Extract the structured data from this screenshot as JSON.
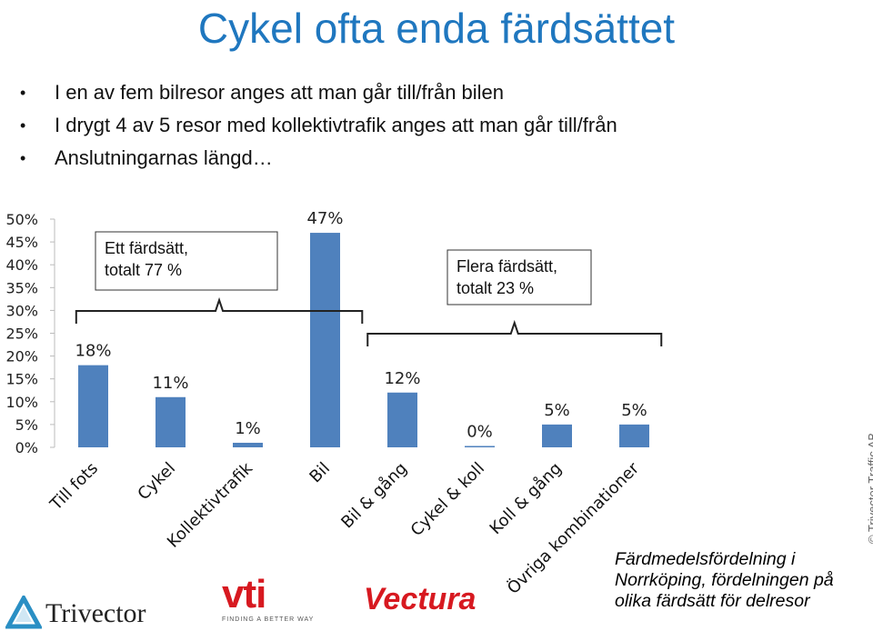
{
  "title": "Cykel ofta enda färdsättet",
  "bullets": [
    "I en av fem bilresor anges att man går till/från bilen",
    "I drygt 4 av 5 resor med kollektivtrafik anges att man går till/från",
    "Anslutningarnas längd…"
  ],
  "bullet_glyph": "•",
  "chart_data": {
    "type": "bar",
    "categories": [
      "Till fots",
      "Cykel",
      "Kollektivtrafik",
      "Bil",
      "Bil & gång",
      "Cykel & koll",
      "Koll & gång",
      "Övriga kombinationer"
    ],
    "values": [
      18,
      11,
      1,
      47,
      12,
      0.3,
      5,
      5
    ],
    "data_labels": [
      "18%",
      "11%",
      "1%",
      "47%",
      "12%",
      "0%",
      "5%",
      "5%"
    ],
    "y_ticks": [
      "0%",
      "5%",
      "10%",
      "15%",
      "20%",
      "25%",
      "30%",
      "35%",
      "40%",
      "45%",
      "50%"
    ],
    "ylim": [
      0,
      50
    ],
    "grid": false,
    "bar_color": "#4f81bd",
    "group_boxes": [
      {
        "lines": [
          "Ett färdsätt,",
          "totalt 77 %"
        ],
        "categories": [
          0,
          3
        ]
      },
      {
        "lines": [
          "Flera färdsätt,",
          "totalt 23 %"
        ],
        "categories": [
          4,
          7
        ]
      }
    ]
  },
  "note": "Färdmedelsfördelning i Norrköping, fördelningen på olika färdsätt för delresor",
  "credit": "© Trivector Traffic AB",
  "logos": {
    "trivector": "Trivector",
    "vti": "vti",
    "vti_tagline": "FINDING A BETTER WAY",
    "vectura": "Vectura"
  },
  "colors": {
    "title": "#1f77bf",
    "bars": "#4f81bd",
    "logo_red": "#d71920"
  }
}
